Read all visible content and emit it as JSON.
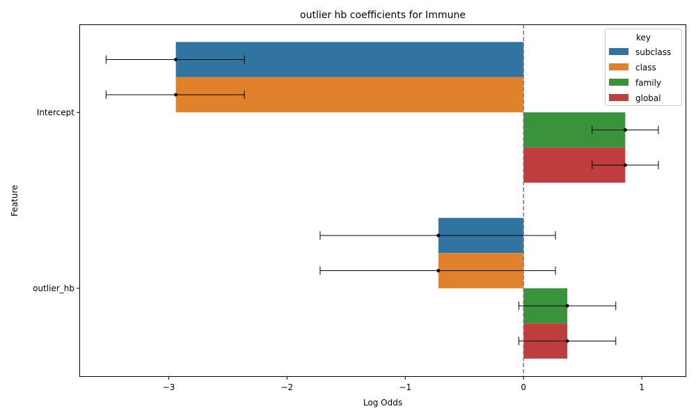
{
  "chart_data": {
    "type": "bar",
    "orientation": "horizontal",
    "title": "outlier hb coefficients for Immune",
    "xlabel": "Log Odds",
    "ylabel": "Feature",
    "xlim": [
      -3.75,
      1.37
    ],
    "xticks": [
      -3,
      -2,
      -1,
      0,
      1
    ],
    "xtick_labels": [
      "−3",
      "−2",
      "−1",
      "0",
      "1"
    ],
    "categories": [
      "Intercept",
      "outlier_hb"
    ],
    "reference_line": 0,
    "legend_title": "key",
    "legend_position": "top-right",
    "series": [
      {
        "name": "subclass",
        "color": "#3274a1",
        "values": [
          -2.94,
          -0.72
        ],
        "err_low": [
          -3.53,
          -1.72
        ],
        "err_high": [
          -2.36,
          0.27
        ]
      },
      {
        "name": "class",
        "color": "#e1812c",
        "values": [
          -2.94,
          -0.72
        ],
        "err_low": [
          -3.53,
          -1.72
        ],
        "err_high": [
          -2.36,
          0.27
        ]
      },
      {
        "name": "family",
        "color": "#3a923a",
        "values": [
          0.86,
          0.37
        ],
        "err_low": [
          0.58,
          -0.04
        ],
        "err_high": [
          1.14,
          0.78
        ]
      },
      {
        "name": "global",
        "color": "#c03d3e",
        "values": [
          0.86,
          0.37
        ],
        "err_low": [
          0.58,
          -0.04
        ],
        "err_high": [
          1.14,
          0.78
        ]
      }
    ]
  }
}
